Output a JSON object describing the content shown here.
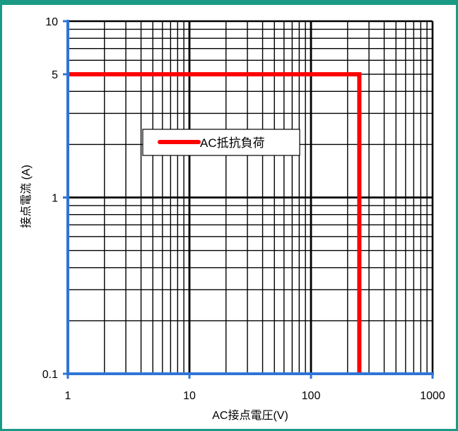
{
  "chart_data": {
    "type": "line",
    "x_scale": "log",
    "y_scale": "log",
    "xlim": [
      1,
      1000
    ],
    "ylim": [
      0.1,
      10
    ],
    "x_ticks": [
      {
        "value": 1,
        "label": "1"
      },
      {
        "value": 10,
        "label": "10"
      },
      {
        "value": 100,
        "label": "100"
      },
      {
        "value": 1000,
        "label": "1000"
      }
    ],
    "y_ticks": [
      {
        "value": 0.1,
        "label": "0.1"
      },
      {
        "value": 1,
        "label": "1"
      },
      {
        "value": 5,
        "label": "5"
      },
      {
        "value": 10,
        "label": "10"
      }
    ],
    "xlabel": "AC接点電圧(V)",
    "ylabel": "接点電流 (A)",
    "grid": true,
    "legend_position": "center-left",
    "series": [
      {
        "name": "AC抵抗負荷",
        "color": "#ff0000",
        "points": [
          [
            1,
            5
          ],
          [
            250,
            5
          ],
          [
            250,
            0.1
          ]
        ]
      }
    ],
    "colors": {
      "axis": "#2e75d6",
      "grid": "#000000",
      "frame_border": "#1a9a85"
    }
  }
}
